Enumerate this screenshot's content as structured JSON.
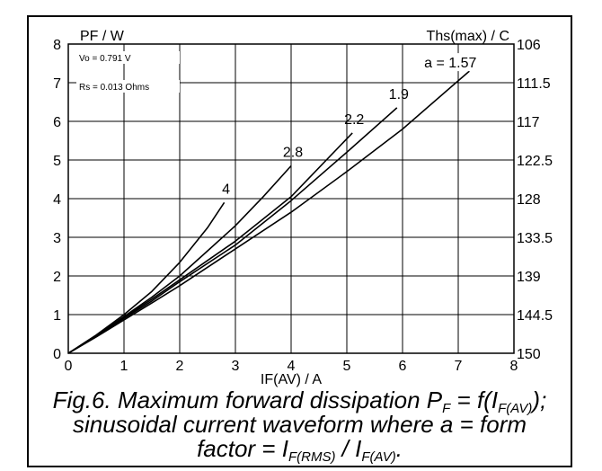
{
  "chart_data": {
    "type": "line",
    "title": "",
    "xlabel": "IF(AV) / A",
    "ylabel": "PF / W",
    "y2label": "Ths(max) / C",
    "xlim": [
      0,
      8
    ],
    "ylim": [
      0,
      8
    ],
    "xticks": [
      "0",
      "1",
      "2",
      "3",
      "4",
      "5",
      "6",
      "7",
      "8"
    ],
    "yticks": [
      "0",
      "1",
      "2",
      "3",
      "4",
      "5",
      "6",
      "7",
      "8"
    ],
    "y2ticks": [
      "150",
      "144.5",
      "139",
      "133.5",
      "128",
      "122.5",
      "117",
      "111.5",
      "106"
    ],
    "grid": true,
    "annotations": [
      "Vo = 0.791 V",
      "Rs = 0.013 Ohms"
    ],
    "series": [
      {
        "label": "4",
        "a": 4,
        "x": [
          0,
          0.5,
          1,
          1.5,
          2,
          2.5,
          2.8
        ],
        "y": [
          0,
          0.47,
          1.0,
          1.6,
          2.35,
          3.25,
          3.9
        ]
      },
      {
        "label": "2.8",
        "a": 2.8,
        "x": [
          0,
          0.5,
          1,
          1.5,
          2,
          2.5,
          3,
          3.5,
          4
        ],
        "y": [
          0,
          0.45,
          0.95,
          1.45,
          2.0,
          2.65,
          3.3,
          4.05,
          4.85
        ]
      },
      {
        "label": "2.2",
        "a": 2.2,
        "x": [
          0,
          0.5,
          1,
          1.5,
          2,
          3,
          4,
          5.1
        ],
        "y": [
          0,
          0.44,
          0.93,
          1.4,
          1.9,
          2.9,
          4.05,
          5.7
        ]
      },
      {
        "label": "1.9",
        "a": 1.9,
        "x": [
          0,
          0.5,
          1,
          1.5,
          2,
          3,
          4,
          5,
          5.9
        ],
        "y": [
          0,
          0.43,
          0.9,
          1.35,
          1.85,
          2.8,
          3.95,
          5.2,
          6.35
        ]
      },
      {
        "label": "a = 1.57",
        "a": 1.57,
        "x": [
          0,
          0.5,
          1,
          1.5,
          2,
          3,
          4,
          5,
          6,
          7.2
        ],
        "y": [
          0,
          0.42,
          0.86,
          1.3,
          1.75,
          2.7,
          3.65,
          4.7,
          5.8,
          7.3
        ]
      }
    ]
  },
  "caption": {
    "line1_a": "Fig.6.  Maximum forward dissipation P",
    "line1_sub1": "F",
    "line1_b": " = f(I",
    "line1_sub2": "F(AV)",
    "line1_c": ");",
    "line2": "sinusoidal current waveform where a = form",
    "line3_a": "factor = I",
    "line3_sub1": "F(RMS)",
    "line3_b": " / I",
    "line3_sub2": "F(AV)",
    "line3_c": "."
  }
}
